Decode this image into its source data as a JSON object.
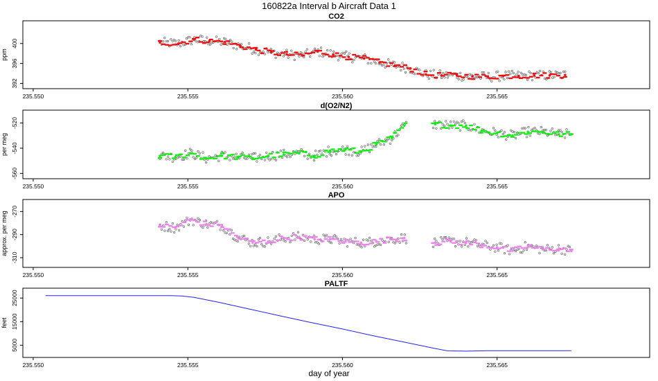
{
  "figure_title": "160822a   Interval b Aircraft Data 1",
  "chart_data": [
    {
      "type": "scatter",
      "title": "CO2",
      "ylabel": "ppm",
      "xlabel": "",
      "xlim": [
        235.5498,
        235.5698
      ],
      "ylim": [
        391.5,
        404.0
      ],
      "x_ticks": [
        235.55,
        235.555,
        235.56,
        235.565
      ],
      "x_tick_labels": [
        "235.550",
        "235.555",
        "235.560",
        "235.565"
      ],
      "y_ticks": [
        400,
        396,
        392
      ],
      "y_tick_labels": [
        "400",
        "396",
        "392"
      ],
      "colors": {
        "mean": "#ee1111",
        "raw": "#555555"
      },
      "series": [
        {
          "name": "CO2",
          "x": [
            235.5541,
            235.5547,
            235.5552,
            235.5557,
            235.5562,
            235.5567,
            235.5572,
            235.5577,
            235.5582,
            235.5587,
            235.5592,
            235.5597,
            235.5602,
            235.5607,
            235.5612,
            235.5617,
            235.5622,
            235.5627,
            235.5632,
            235.5637,
            235.5642,
            235.5647,
            235.5652,
            235.5657,
            235.5662,
            235.5667,
            235.5672
          ],
          "values": [
            400.2,
            400.0,
            400.8,
            400.5,
            400.3,
            399.5,
            398.8,
            398.2,
            397.8,
            397.6,
            398.4,
            397.8,
            397.3,
            397.0,
            396.2,
            395.6,
            395.0,
            393.8,
            393.6,
            393.6,
            393.4,
            393.3,
            393.5,
            393.5,
            393.6,
            393.6,
            393.7
          ]
        }
      ]
    },
    {
      "type": "scatter",
      "title": "d(O2/N2)",
      "ylabel": "per meg",
      "xlabel": "",
      "xlim": [
        235.5498,
        235.5698
      ],
      "ylim": [
        -562,
        -512
      ],
      "x_ticks": [
        235.55,
        235.555,
        235.56,
        235.565
      ],
      "x_tick_labels": [
        "235.550",
        "235.555",
        "235.560",
        "235.565"
      ],
      "y_ticks": [
        -520,
        -540,
        -560
      ],
      "y_tick_labels": [
        "-520",
        "-540",
        "-560"
      ],
      "colors": {
        "mean": "#11ee11",
        "raw": "#555555"
      },
      "series": [
        {
          "name": "d(O2/N2)",
          "x": [
            235.5541,
            235.5546,
            235.5551,
            235.5556,
            235.5561,
            235.5566,
            235.5571,
            235.5576,
            235.5581,
            235.5586,
            235.5591,
            235.5596,
            235.5601,
            235.5606,
            235.5611,
            235.5616,
            235.562,
            235.563,
            235.5635,
            235.564,
            235.5645,
            235.565,
            235.5655,
            235.566,
            235.5665,
            235.567,
            235.5674
          ],
          "values": [
            -546,
            -547,
            -544,
            -548,
            -546,
            -547,
            -548,
            -546,
            -545,
            -544,
            -546,
            -542,
            -541,
            -543,
            -537,
            -532,
            -522,
            -521,
            -522,
            -522,
            -526,
            -528,
            -530,
            -527,
            -527,
            -529,
            -529
          ]
        }
      ]
    },
    {
      "type": "scatter",
      "title": "APO",
      "ylabel": "approx. per meg",
      "xlabel": "",
      "xlim": [
        235.5498,
        235.5698
      ],
      "ylim": [
        -316,
        -262
      ],
      "x_ticks": [
        235.55,
        235.555,
        235.56,
        235.565
      ],
      "x_tick_labels": [
        "235.550",
        "235.555",
        "235.560",
        "235.565"
      ],
      "y_ticks": [
        -270,
        -290,
        -310
      ],
      "y_tick_labels": [
        "-270",
        "-290",
        "-310"
      ],
      "colors": {
        "mean": "#ee82ee",
        "raw": "#555555"
      },
      "series": [
        {
          "name": "APO",
          "x": [
            235.5541,
            235.5546,
            235.5551,
            235.5556,
            235.5561,
            235.5566,
            235.5571,
            235.5576,
            235.5581,
            235.5586,
            235.5591,
            235.5596,
            235.5601,
            235.5606,
            235.5611,
            235.5616,
            235.562,
            235.563,
            235.5635,
            235.564,
            235.5645,
            235.565,
            235.5655,
            235.566,
            235.5665,
            235.567,
            235.5674
          ],
          "values": [
            -282,
            -284,
            -277,
            -281,
            -282,
            -292,
            -297,
            -296,
            -293,
            -292,
            -294,
            -294,
            -296,
            -297,
            -296,
            -294,
            -293,
            -297,
            -296,
            -297,
            -299,
            -301,
            -304,
            -300,
            -303,
            -302,
            -304
          ]
        }
      ]
    },
    {
      "type": "line",
      "title": "PALTF",
      "ylabel": "feet",
      "xlabel": "day of year",
      "xlim": [
        235.5498,
        235.5698
      ],
      "ylim": [
        1000,
        28000
      ],
      "x_ticks": [
        235.55,
        235.555,
        235.56,
        235.565
      ],
      "x_tick_labels": [
        "235.550",
        "235.555",
        "235.560",
        "235.565"
      ],
      "y_ticks": [
        25000,
        15000,
        5000
      ],
      "y_tick_labels": [
        "25000",
        "15000",
        "5000"
      ],
      "colors": {
        "line": "#2222ee"
      },
      "series": [
        {
          "name": "PALTF",
          "x": [
            235.5504,
            235.5535,
            235.5544,
            235.5548,
            235.5552,
            235.556,
            235.557,
            235.558,
            235.559,
            235.56,
            235.561,
            235.562,
            235.563,
            235.5634,
            235.564,
            235.5647,
            235.566,
            235.5674
          ],
          "values": [
            26000,
            26000,
            26000,
            25900,
            25300,
            23200,
            20300,
            17400,
            14600,
            11900,
            9000,
            6300,
            3600,
            2600,
            2500,
            2700,
            2700,
            2700
          ]
        }
      ]
    }
  ]
}
